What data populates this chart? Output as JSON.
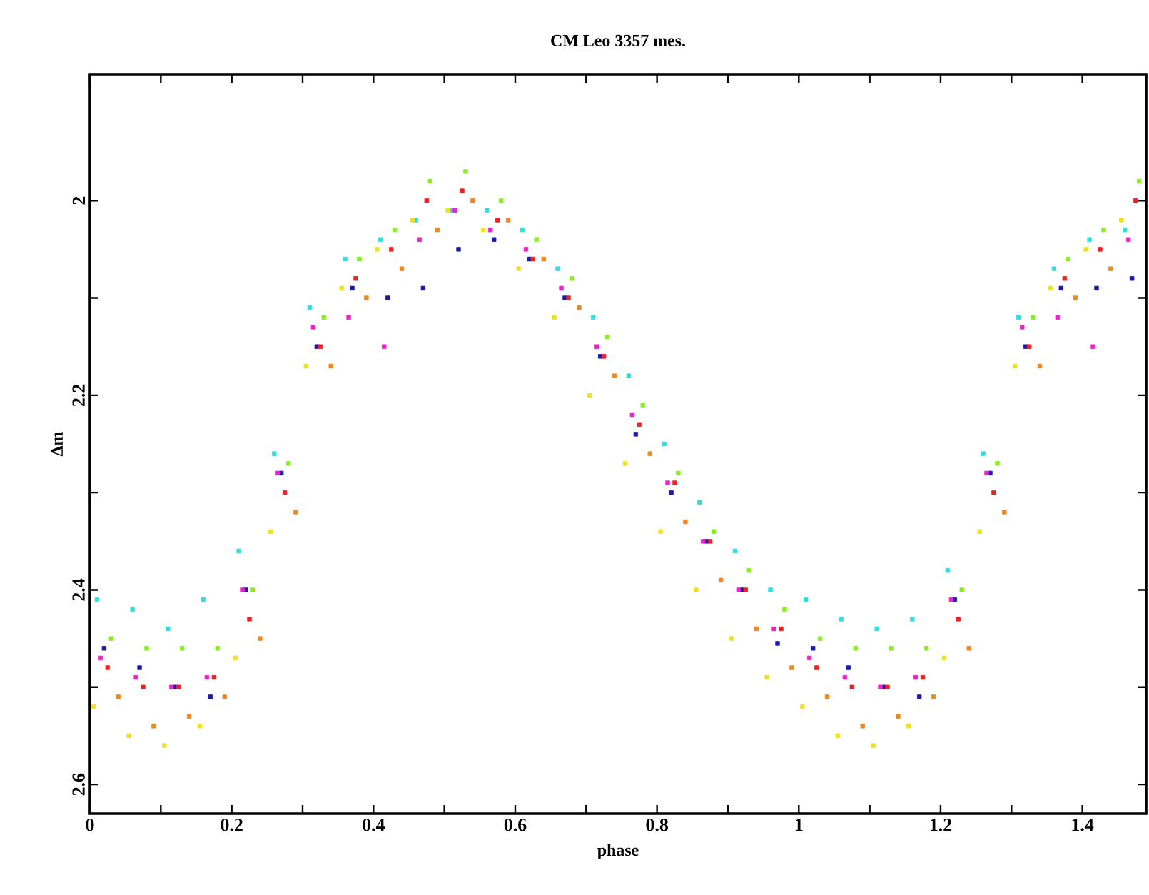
{
  "chart_data": {
    "type": "scatter",
    "title": "CM Leo   3357 mes.",
    "xlabel": "phase",
    "ylabel": "Δm",
    "marker": "square",
    "xlim": [
      0,
      1.49
    ],
    "ylim": [
      2.63,
      1.87
    ],
    "xticks": [
      0,
      {
        "value": 0.1,
        "label": null
      },
      0.2,
      {
        "value": 0.3,
        "label": null
      },
      0.4,
      {
        "value": 0.5,
        "label": null
      },
      0.6,
      {
        "value": 0.7,
        "label": null
      },
      0.8,
      {
        "value": 0.9,
        "label": null
      },
      1,
      {
        "value": 1.1,
        "label": null
      },
      1.2,
      {
        "value": 1.3,
        "label": null
      },
      1.4
    ],
    "yticks": [
      2,
      {
        "value": 2.1,
        "label": null
      },
      2.2,
      {
        "value": 2.3,
        "label": null
      },
      2.4,
      {
        "value": 2.5,
        "label": null
      },
      2.6
    ],
    "series": [
      {
        "color": "#33dddd",
        "x": [
          0.01,
          0.06,
          0.11,
          0.16,
          0.21,
          0.26,
          0.31,
          0.36,
          0.41,
          0.46,
          0.51,
          0.56,
          0.61,
          0.66,
          0.71,
          0.76,
          0.81,
          0.86,
          0.91,
          0.96,
          1.01,
          1.06,
          1.11,
          1.16,
          1.21,
          1.26,
          1.31,
          1.36,
          1.41,
          1.46
        ],
        "values": [
          2.41,
          2.42,
          2.44,
          2.41,
          2.36,
          2.26,
          2.11,
          2.06,
          2.04,
          2.02,
          2.01,
          2.01,
          2.03,
          2.07,
          2.12,
          2.18,
          2.25,
          2.31,
          2.36,
          2.4,
          2.41,
          2.43,
          2.44,
          2.43,
          2.38,
          2.26,
          2.12,
          2.07,
          2.04,
          2.03
        ]
      },
      {
        "color": "#1a1aaa",
        "x": [
          0.02,
          0.07,
          0.12,
          0.17,
          0.22,
          0.27,
          0.32,
          0.37,
          0.42,
          0.47,
          0.52,
          0.57,
          0.62,
          0.67,
          0.72,
          0.77,
          0.82,
          0.87,
          0.92,
          0.97,
          1.02,
          1.07,
          1.12,
          1.17,
          1.22,
          1.27,
          1.32,
          1.37,
          1.42,
          1.47
        ],
        "values": [
          2.46,
          2.48,
          2.5,
          2.51,
          2.4,
          2.28,
          2.15,
          2.09,
          2.1,
          2.09,
          2.05,
          2.04,
          2.06,
          2.1,
          2.16,
          2.24,
          2.3,
          2.35,
          2.4,
          2.455,
          2.46,
          2.48,
          2.5,
          2.51,
          2.41,
          2.28,
          2.15,
          2.09,
          2.09,
          2.08
        ]
      },
      {
        "color": "#88ee22",
        "x": [
          0.03,
          0.08,
          0.13,
          0.18,
          0.23,
          0.28,
          0.33,
          0.38,
          0.43,
          0.48,
          0.53,
          0.58,
          0.63,
          0.68,
          0.73,
          0.78,
          0.83,
          0.88,
          0.93,
          0.98,
          1.03,
          1.08,
          1.13,
          1.18,
          1.23,
          1.28,
          1.33,
          1.38,
          1.43,
          1.48
        ],
        "values": [
          2.45,
          2.46,
          2.46,
          2.46,
          2.4,
          2.27,
          2.12,
          2.06,
          2.03,
          1.98,
          1.97,
          2.0,
          2.04,
          2.08,
          2.14,
          2.21,
          2.28,
          2.34,
          2.38,
          2.42,
          2.45,
          2.46,
          2.46,
          2.46,
          2.4,
          2.27,
          2.12,
          2.06,
          2.03,
          1.98
        ]
      },
      {
        "color": "#ee8822",
        "x": [
          0.04,
          0.09,
          0.14,
          0.19,
          0.24,
          0.29,
          0.34,
          0.39,
          0.44,
          0.49,
          0.54,
          0.59,
          0.64,
          0.69,
          0.74,
          0.79,
          0.84,
          0.89,
          0.94,
          0.99,
          1.04,
          1.09,
          1.14,
          1.19,
          1.24,
          1.29,
          1.34,
          1.39,
          1.44
        ],
        "values": [
          2.51,
          2.54,
          2.53,
          2.51,
          2.45,
          2.32,
          2.17,
          2.1,
          2.07,
          2.03,
          2.0,
          2.02,
          2.06,
          2.11,
          2.18,
          2.26,
          2.33,
          2.39,
          2.44,
          2.48,
          2.51,
          2.54,
          2.53,
          2.51,
          2.46,
          2.32,
          2.17,
          2.1,
          2.07
        ]
      },
      {
        "color": "#f0e020",
        "x": [
          0.005,
          0.055,
          0.105,
          0.155,
          0.205,
          0.255,
          0.305,
          0.355,
          0.405,
          0.455,
          0.505,
          0.555,
          0.605,
          0.655,
          0.705,
          0.755,
          0.805,
          0.855,
          0.905,
          0.955,
          1.005,
          1.055,
          1.105,
          1.155,
          1.205,
          1.255,
          1.305,
          1.355,
          1.405,
          1.455
        ],
        "values": [
          2.52,
          2.55,
          2.56,
          2.54,
          2.47,
          2.34,
          2.17,
          2.09,
          2.05,
          2.02,
          2.01,
          2.03,
          2.07,
          2.12,
          2.2,
          2.27,
          2.34,
          2.4,
          2.45,
          2.49,
          2.52,
          2.55,
          2.56,
          2.54,
          2.47,
          2.34,
          2.17,
          2.09,
          2.05,
          2.02
        ]
      },
      {
        "color": "#ee22cc",
        "x": [
          0.015,
          0.065,
          0.115,
          0.165,
          0.215,
          0.265,
          0.315,
          0.365,
          0.415,
          0.465,
          0.515,
          0.565,
          0.615,
          0.665,
          0.715,
          0.765,
          0.815,
          0.865,
          0.915,
          0.965,
          1.015,
          1.065,
          1.115,
          1.165,
          1.215,
          1.265,
          1.315,
          1.365,
          1.415,
          1.465
        ],
        "values": [
          2.47,
          2.49,
          2.5,
          2.49,
          2.4,
          2.28,
          2.13,
          2.12,
          2.15,
          2.04,
          2.01,
          2.03,
          2.05,
          2.09,
          2.15,
          2.22,
          2.29,
          2.35,
          2.4,
          2.44,
          2.47,
          2.49,
          2.5,
          2.49,
          2.41,
          2.28,
          2.13,
          2.12,
          2.15,
          2.04
        ]
      },
      {
        "color": "#ee2222",
        "x": [
          0.025,
          0.075,
          0.125,
          0.175,
          0.225,
          0.275,
          0.325,
          0.375,
          0.425,
          0.475,
          0.525,
          0.575,
          0.625,
          0.675,
          0.725,
          0.775,
          0.825,
          0.875,
          0.925,
          0.975,
          1.025,
          1.075,
          1.125,
          1.175,
          1.225,
          1.275,
          1.325,
          1.375,
          1.425,
          1.475
        ],
        "values": [
          2.48,
          2.5,
          2.5,
          2.49,
          2.43,
          2.3,
          2.15,
          2.08,
          2.05,
          2.0,
          1.99,
          2.02,
          2.06,
          2.1,
          2.16,
          2.23,
          2.29,
          2.35,
          2.4,
          2.44,
          2.48,
          2.5,
          2.5,
          2.49,
          2.43,
          2.3,
          2.15,
          2.08,
          2.05,
          2.0
        ]
      }
    ]
  }
}
